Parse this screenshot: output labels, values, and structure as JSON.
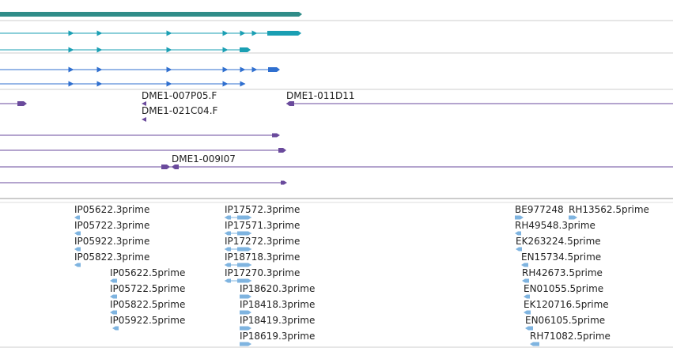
{
  "colors": {
    "gene": "#2f8c88",
    "transcript_teal": "#1a9fb3",
    "transcript_blue": "#2f6fcf",
    "clone": "#6a4a9c",
    "est": "#7fb4e0",
    "separator": "#b8b8b8",
    "background": "#ffffff"
  },
  "clone_labels": [
    "DME1-007P05.F",
    "DME1-011D11",
    "DME1-021C04.F",
    "DME1-009I07"
  ],
  "est_labels": {
    "group1": [
      "IP05622.3prime",
      "IP05722.3prime",
      "IP05922.3prime",
      "IP05822.3prime"
    ],
    "group2": [
      "IP05622.5prime",
      "IP05722.5prime",
      "IP05822.5prime",
      "IP05922.5prime"
    ],
    "group3": [
      "IP17572.3prime",
      "IP17571.3prime",
      "IP17272.3prime",
      "IP18718.3prime",
      "IP17270.3prime"
    ],
    "group4": [
      "IP18620.3prime",
      "IP18418.3prime",
      "IP18419.3prime",
      "IP18619.3prime"
    ],
    "group5": [
      "BE977248",
      "RH13562.5prime",
      "RH49548.3prime",
      "EK263224.5prime",
      "EN15734.5prime",
      "RH42673.5prime",
      "EN01055.5prime",
      "EK120716.5prime",
      "EN06105.5prime",
      "RH71082.5prime"
    ]
  }
}
